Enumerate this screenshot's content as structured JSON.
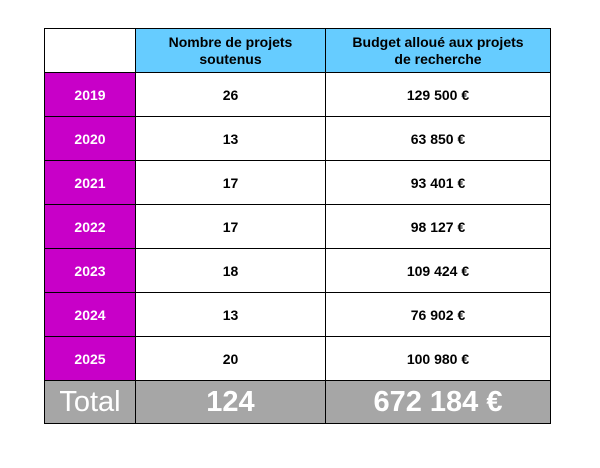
{
  "table": {
    "headers": {
      "count": [
        "Nombre de projets",
        "soutenus"
      ],
      "budget": [
        "Budget alloué aux projets",
        "de recherche"
      ]
    },
    "rows": [
      {
        "year": "2019",
        "count": "26",
        "budget": "129 500 €"
      },
      {
        "year": "2020",
        "count": "13",
        "budget": "63 850 €"
      },
      {
        "year": "2021",
        "count": "17",
        "budget": "93 401 €"
      },
      {
        "year": "2022",
        "count": "17",
        "budget": "98 127 €"
      },
      {
        "year": "2023",
        "count": "18",
        "budget": "109 424 €"
      },
      {
        "year": "2024",
        "count": "13",
        "budget": "76 902 €"
      },
      {
        "year": "2025",
        "count": "20",
        "budget": "100 980 €"
      }
    ],
    "total": {
      "label": "Total",
      "count": "124",
      "budget": "672 184 €"
    }
  },
  "colors": {
    "header_bg": "#66ccff",
    "year_bg": "#c800c8",
    "total_bg": "#a6a6a6"
  }
}
